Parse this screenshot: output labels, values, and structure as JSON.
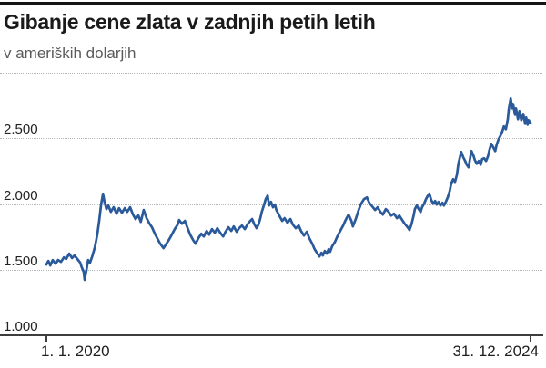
{
  "header": {
    "title": "Gibanje cene zlata v zadnjih petih letih",
    "subtitle": "v ameriških dolarjih"
  },
  "chart_data": {
    "type": "line",
    "title": "Gibanje cene zlata v zadnjih petih letih",
    "subtitle": "v ameriških dolarjih",
    "unit": "USD",
    "line_color": "#2b5a9b",
    "grid": "horizontal dotted",
    "legend": "none",
    "ylim": [
      1000,
      3000
    ],
    "y_ticks": [
      {
        "label": "2.500",
        "value": 2500
      },
      {
        "label": "2.000",
        "value": 2000
      },
      {
        "label": "1.500",
        "value": 1500
      },
      {
        "label": "1.000",
        "value": 1000
      }
    ],
    "y_gridlines_unlabeled": [
      3000
    ],
    "x_ticks": [
      {
        "label": "1. 1. 2020",
        "t": 0
      },
      {
        "label": "31. 12. 2024",
        "t": 1
      }
    ],
    "series": [
      {
        "name": "cena zlata v USD",
        "points": [
          [
            0.0,
            1539
          ],
          [
            0.004,
            1567
          ],
          [
            0.008,
            1532
          ],
          [
            0.013,
            1574
          ],
          [
            0.019,
            1546
          ],
          [
            0.024,
            1574
          ],
          [
            0.03,
            1560
          ],
          [
            0.036,
            1594
          ],
          [
            0.041,
            1581
          ],
          [
            0.047,
            1622
          ],
          [
            0.053,
            1588
          ],
          [
            0.058,
            1608
          ],
          [
            0.064,
            1581
          ],
          [
            0.07,
            1553
          ],
          [
            0.073,
            1518
          ],
          [
            0.077,
            1484
          ],
          [
            0.079,
            1422
          ],
          [
            0.083,
            1505
          ],
          [
            0.086,
            1574
          ],
          [
            0.09,
            1553
          ],
          [
            0.094,
            1594
          ],
          [
            0.1,
            1670
          ],
          [
            0.105,
            1767
          ],
          [
            0.109,
            1871
          ],
          [
            0.113,
            1995
          ],
          [
            0.117,
            2078
          ],
          [
            0.12,
            2016
          ],
          [
            0.124,
            1961
          ],
          [
            0.128,
            1988
          ],
          [
            0.133,
            1940
          ],
          [
            0.139,
            1975
          ],
          [
            0.145,
            1926
          ],
          [
            0.15,
            1968
          ],
          [
            0.156,
            1933
          ],
          [
            0.162,
            1968
          ],
          [
            0.167,
            1940
          ],
          [
            0.173,
            1975
          ],
          [
            0.179,
            1919
          ],
          [
            0.184,
            1885
          ],
          [
            0.19,
            1912
          ],
          [
            0.195,
            1864
          ],
          [
            0.201,
            1954
          ],
          [
            0.207,
            1892
          ],
          [
            0.212,
            1857
          ],
          [
            0.218,
            1823
          ],
          [
            0.224,
            1774
          ],
          [
            0.229,
            1740
          ],
          [
            0.235,
            1698
          ],
          [
            0.242,
            1664
          ],
          [
            0.248,
            1698
          ],
          [
            0.254,
            1733
          ],
          [
            0.259,
            1767
          ],
          [
            0.265,
            1809
          ],
          [
            0.271,
            1843
          ],
          [
            0.274,
            1878
          ],
          [
            0.28,
            1850
          ],
          [
            0.286,
            1871
          ],
          [
            0.291,
            1823
          ],
          [
            0.297,
            1767
          ],
          [
            0.303,
            1726
          ],
          [
            0.308,
            1698
          ],
          [
            0.314,
            1740
          ],
          [
            0.32,
            1774
          ],
          [
            0.325,
            1753
          ],
          [
            0.331,
            1795
          ],
          [
            0.336,
            1767
          ],
          [
            0.342,
            1809
          ],
          [
            0.348,
            1781
          ],
          [
            0.353,
            1816
          ],
          [
            0.359,
            1781
          ],
          [
            0.365,
            1753
          ],
          [
            0.37,
            1788
          ],
          [
            0.376,
            1823
          ],
          [
            0.382,
            1795
          ],
          [
            0.387,
            1829
          ],
          [
            0.393,
            1788
          ],
          [
            0.398,
            1816
          ],
          [
            0.404,
            1836
          ],
          [
            0.41,
            1809
          ],
          [
            0.415,
            1843
          ],
          [
            0.421,
            1871
          ],
          [
            0.425,
            1885
          ],
          [
            0.429,
            1850
          ],
          [
            0.434,
            1816
          ],
          [
            0.438,
            1843
          ],
          [
            0.442,
            1892
          ],
          [
            0.445,
            1940
          ],
          [
            0.449,
            1988
          ],
          [
            0.453,
            2037
          ],
          [
            0.457,
            2064
          ],
          [
            0.46,
            1988
          ],
          [
            0.464,
            2016
          ],
          [
            0.468,
            1975
          ],
          [
            0.472,
            1995
          ],
          [
            0.475,
            1954
          ],
          [
            0.481,
            1912
          ],
          [
            0.487,
            1871
          ],
          [
            0.492,
            1892
          ],
          [
            0.498,
            1857
          ],
          [
            0.504,
            1885
          ],
          [
            0.509,
            1843
          ],
          [
            0.515,
            1816
          ],
          [
            0.521,
            1836
          ],
          [
            0.526,
            1795
          ],
          [
            0.532,
            1760
          ],
          [
            0.538,
            1788
          ],
          [
            0.543,
            1740
          ],
          [
            0.549,
            1698
          ],
          [
            0.554,
            1657
          ],
          [
            0.56,
            1622
          ],
          [
            0.564,
            1601
          ],
          [
            0.568,
            1629
          ],
          [
            0.571,
            1608
          ],
          [
            0.575,
            1643
          ],
          [
            0.579,
            1622
          ],
          [
            0.583,
            1657
          ],
          [
            0.586,
            1636
          ],
          [
            0.59,
            1677
          ],
          [
            0.596,
            1712
          ],
          [
            0.601,
            1753
          ],
          [
            0.607,
            1795
          ],
          [
            0.613,
            1836
          ],
          [
            0.618,
            1878
          ],
          [
            0.624,
            1919
          ],
          [
            0.63,
            1871
          ],
          [
            0.633,
            1829
          ],
          [
            0.639,
            1885
          ],
          [
            0.645,
            1954
          ],
          [
            0.65,
            2002
          ],
          [
            0.656,
            2037
          ],
          [
            0.662,
            2050
          ],
          [
            0.667,
            2009
          ],
          [
            0.673,
            1981
          ],
          [
            0.679,
            1954
          ],
          [
            0.684,
            1975
          ],
          [
            0.69,
            1940
          ],
          [
            0.695,
            1919
          ],
          [
            0.701,
            1961
          ],
          [
            0.707,
            1940
          ],
          [
            0.712,
            1912
          ],
          [
            0.718,
            1926
          ],
          [
            0.724,
            1892
          ],
          [
            0.729,
            1912
          ],
          [
            0.735,
            1878
          ],
          [
            0.74,
            1850
          ],
          [
            0.746,
            1823
          ],
          [
            0.75,
            1802
          ],
          [
            0.754,
            1843
          ],
          [
            0.758,
            1905
          ],
          [
            0.761,
            1961
          ],
          [
            0.765,
            1988
          ],
          [
            0.769,
            1961
          ],
          [
            0.773,
            1940
          ],
          [
            0.776,
            1975
          ],
          [
            0.78,
            2002
          ],
          [
            0.784,
            2037
          ],
          [
            0.788,
            2064
          ],
          [
            0.791,
            2078
          ],
          [
            0.795,
            2030
          ],
          [
            0.799,
            2002
          ],
          [
            0.803,
            2023
          ],
          [
            0.806,
            1995
          ],
          [
            0.81,
            2016
          ],
          [
            0.814,
            1988
          ],
          [
            0.818,
            2009
          ],
          [
            0.821,
            1988
          ],
          [
            0.825,
            2016
          ],
          [
            0.829,
            2050
          ],
          [
            0.833,
            2099
          ],
          [
            0.836,
            2154
          ],
          [
            0.84,
            2188
          ],
          [
            0.844,
            2168
          ],
          [
            0.848,
            2223
          ],
          [
            0.851,
            2306
          ],
          [
            0.855,
            2369
          ],
          [
            0.857,
            2396
          ],
          [
            0.861,
            2355
          ],
          [
            0.865,
            2327
          ],
          [
            0.868,
            2299
          ],
          [
            0.872,
            2279
          ],
          [
            0.876,
            2362
          ],
          [
            0.878,
            2403
          ],
          [
            0.882,
            2369
          ],
          [
            0.885,
            2334
          ],
          [
            0.889,
            2306
          ],
          [
            0.893,
            2327
          ],
          [
            0.897,
            2299
          ],
          [
            0.9,
            2341
          ],
          [
            0.904,
            2348
          ],
          [
            0.908,
            2327
          ],
          [
            0.912,
            2362
          ],
          [
            0.915,
            2410
          ],
          [
            0.919,
            2458
          ],
          [
            0.923,
            2431
          ],
          [
            0.927,
            2403
          ],
          [
            0.93,
            2452
          ],
          [
            0.934,
            2493
          ],
          [
            0.938,
            2520
          ],
          [
            0.942,
            2555
          ],
          [
            0.945,
            2590
          ],
          [
            0.949,
            2569
          ],
          [
            0.953,
            2645
          ],
          [
            0.955,
            2721
          ],
          [
            0.959,
            2804
          ],
          [
            0.962,
            2728
          ],
          [
            0.964,
            2762
          ],
          [
            0.968,
            2679
          ],
          [
            0.97,
            2728
          ],
          [
            0.974,
            2645
          ],
          [
            0.977,
            2707
          ],
          [
            0.981,
            2638
          ],
          [
            0.985,
            2686
          ],
          [
            0.989,
            2610
          ],
          [
            0.991,
            2659
          ],
          [
            0.994,
            2603
          ],
          [
            0.996,
            2638
          ],
          [
            1.0,
            2617
          ]
        ]
      }
    ]
  }
}
